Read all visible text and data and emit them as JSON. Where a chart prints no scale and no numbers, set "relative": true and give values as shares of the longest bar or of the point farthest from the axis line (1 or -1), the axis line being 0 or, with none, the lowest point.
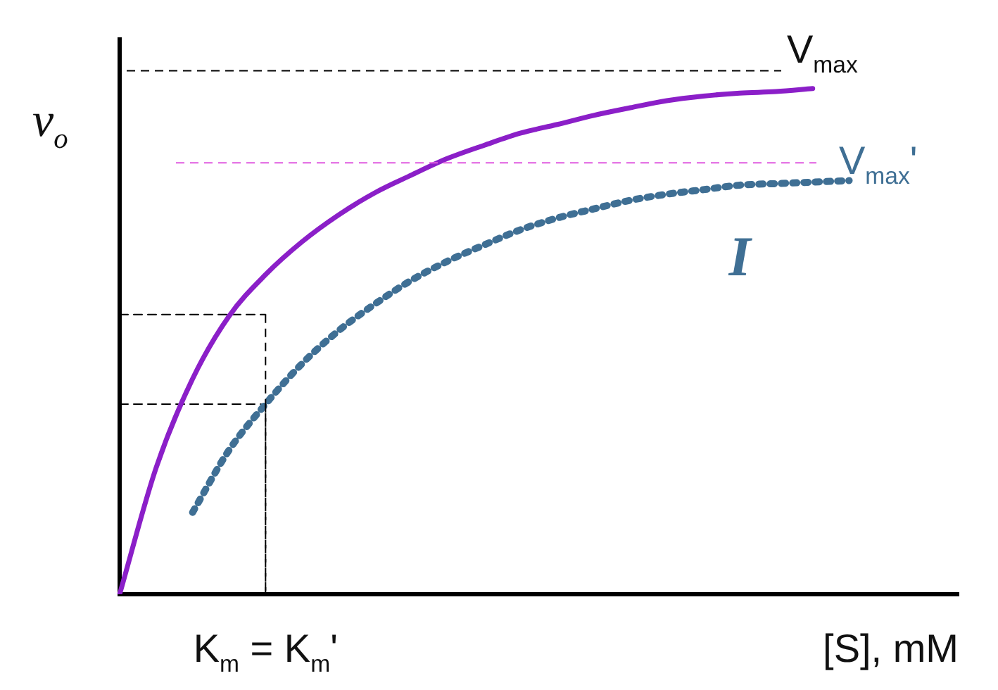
{
  "chart_data": {
    "type": "line",
    "relative": true,
    "ylabel": "v$_{o}$",
    "xlabel": "[S], mM",
    "categories": [
      null,
      null,
      null,
      null,
      null,
      null,
      null,
      null,
      null,
      null,
      null,
      null,
      null,
      null,
      null,
      null,
      null,
      null,
      null,
      null,
      null,
      null,
      null,
      null
    ],
    "series": [
      {
        "color": "#8b1fc8",
        "line_style": "solid",
        "values": [
          0,
          0.25,
          0.426,
          0.55,
          0.632,
          0.697,
          0.75,
          0.794,
          0.829,
          0.862,
          0.888,
          0.912,
          0.929,
          0.947,
          0.962,
          0.976,
          0.985,
          0.991,
          0.994,
          1,
          null,
          null,
          null,
          null
        ]
      },
      {
        "color": "#3f6f94",
        "line_style": "dotted",
        "values": [
          null,
          null,
          0.162,
          0.285,
          0.376,
          0.456,
          0.521,
          0.574,
          0.621,
          0.659,
          0.691,
          0.721,
          0.744,
          0.762,
          0.779,
          0.791,
          0.8,
          0.809,
          0.812,
          0.815,
          0.818,
          null,
          null,
          null
        ]
      },
      {
        "color": "#000000",
        "line_style": "dashed",
        "values": [
          0.553,
          0.553,
          0.553,
          0.553,
          0.553,
          null,
          null,
          null,
          null,
          null,
          null,
          null,
          null,
          null,
          null,
          null,
          null,
          null,
          null,
          null,
          null,
          null,
          null,
          null
        ]
      },
      {
        "color": "#000000",
        "line_style": "dashed",
        "values": [
          0.376,
          0.376,
          0.376,
          0.376,
          0.376,
          null,
          null,
          null,
          null,
          null,
          null,
          null,
          null,
          null,
          null,
          null,
          null,
          null,
          null,
          null,
          null,
          null,
          null,
          null
        ]
      }
    ],
    "ref_lines": [
      {
        "axis": "y",
        "value": 1.035,
        "label": "V$_{max}$",
        "color": "#000000",
        "line_style": "dashed"
      },
      {
        "axis": "y",
        "value": 0.853,
        "label": "V$_{max}$'",
        "color": "#e05ce0",
        "line_style": "dashed"
      }
    ],
    "annotations": [
      {
        "text": "K$_{m}$ = K$_{m}$'"
      },
      {
        "text": "I"
      }
    ],
    "grid": false,
    "legend": false,
    "marker": "none"
  }
}
